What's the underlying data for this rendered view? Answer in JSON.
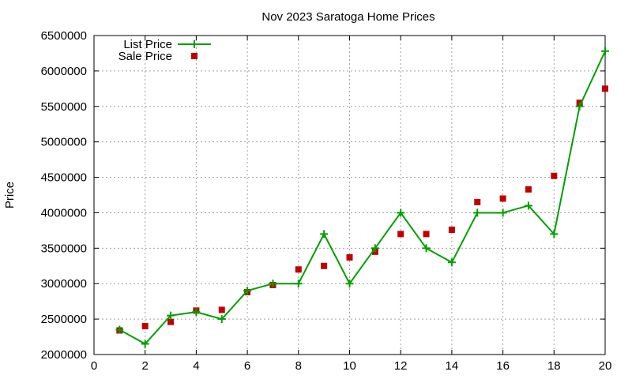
{
  "chart_data": {
    "type": "line",
    "title": "Nov 2023 Saratoga Home Prices",
    "xlabel": "",
    "ylabel": "Price",
    "xlim": [
      0,
      20
    ],
    "ylim": [
      2000000,
      6500000
    ],
    "xticks": [
      0,
      2,
      4,
      6,
      8,
      10,
      12,
      14,
      16,
      18,
      20
    ],
    "yticks": [
      2000000,
      2500000,
      3000000,
      3500000,
      4000000,
      4500000,
      5000000,
      5500000,
      6000000,
      6500000
    ],
    "grid": true,
    "legend_position": "top-left",
    "x": [
      1,
      2,
      3,
      4,
      5,
      6,
      7,
      8,
      9,
      10,
      11,
      12,
      13,
      14,
      15,
      16,
      17,
      18,
      19,
      20
    ],
    "series": [
      {
        "name": "List Price",
        "style": "line-with-plus-markers",
        "color": "#00a000",
        "values": [
          2350000,
          2150000,
          2550000,
          2600000,
          2500000,
          2900000,
          3000000,
          3000000,
          3700000,
          3000000,
          3500000,
          4000000,
          3500000,
          3300000,
          4000000,
          4000000,
          4100000,
          3700000,
          5500000,
          6280000
        ]
      },
      {
        "name": "Sale Price",
        "style": "square-markers",
        "color": "#c00000",
        "values": [
          2340000,
          2400000,
          2460000,
          2620000,
          2630000,
          2880000,
          2980000,
          3200000,
          3250000,
          3370000,
          3450000,
          3700000,
          3700000,
          3760000,
          4150000,
          4200000,
          4330000,
          4520000,
          5550000,
          5750000
        ]
      }
    ]
  }
}
